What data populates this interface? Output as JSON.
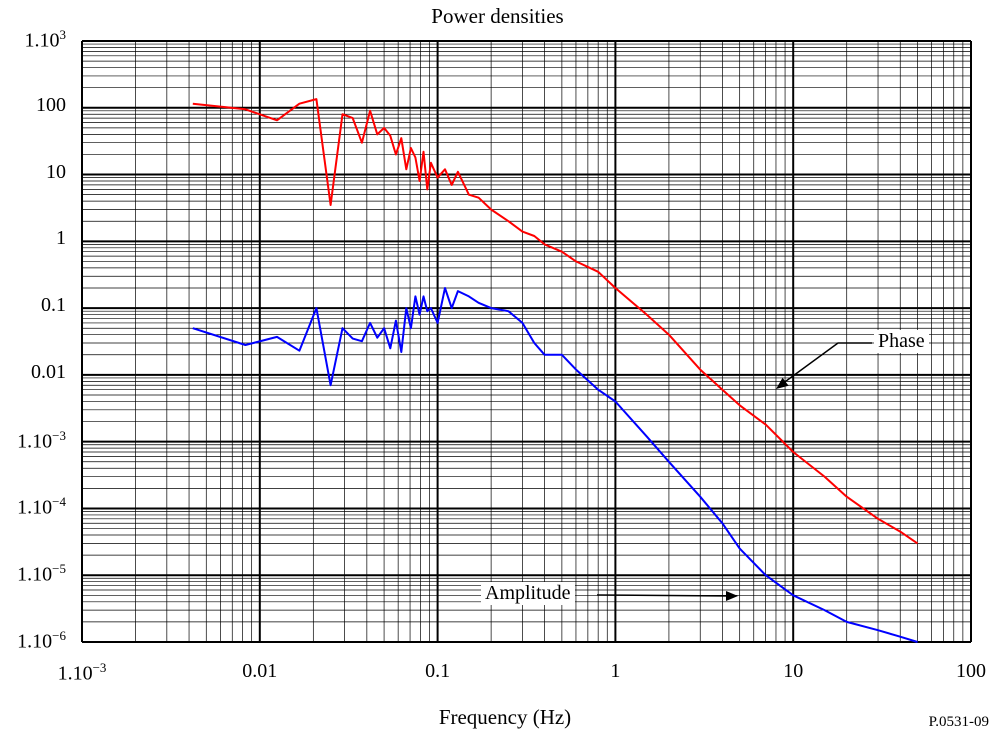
{
  "figure_id": "P.0531-09",
  "chart_data": {
    "type": "line",
    "title": "Power densities",
    "xlabel": "Frequency (Hz)",
    "ylabel": "",
    "xscale": "log",
    "yscale": "log",
    "xlim": [
      0.001,
      100
    ],
    "ylim": [
      1e-06,
      1000
    ],
    "grid": true,
    "x_ticks": [
      {
        "mant": "1.10",
        "exp": "−3"
      },
      {
        "mant": "0.01",
        "exp": ""
      },
      {
        "mant": "0.1",
        "exp": ""
      },
      {
        "mant": "1",
        "exp": ""
      },
      {
        "mant": "10",
        "exp": ""
      },
      {
        "mant": "100",
        "exp": ""
      }
    ],
    "y_ticks": [
      {
        "mant": "1.10",
        "exp": "3"
      },
      {
        "mant": "100",
        "exp": ""
      },
      {
        "mant": "10",
        "exp": ""
      },
      {
        "mant": "1",
        "exp": ""
      },
      {
        "mant": "0.1",
        "exp": ""
      },
      {
        "mant": "0.01",
        "exp": ""
      },
      {
        "mant": "1.10",
        "exp": "−3"
      },
      {
        "mant": "1.10",
        "exp": "−4"
      },
      {
        "mant": "1.10",
        "exp": "−5"
      },
      {
        "mant": "1.10",
        "exp": "−6"
      }
    ],
    "series": [
      {
        "name": "Phase",
        "color": "#ff0000",
        "x": [
          0.0042,
          0.0083,
          0.0125,
          0.0167,
          0.0208,
          0.025,
          0.0292,
          0.0333,
          0.0375,
          0.0417,
          0.0458,
          0.05,
          0.0542,
          0.0583,
          0.0625,
          0.0667,
          0.0708,
          0.075,
          0.0792,
          0.0833,
          0.0875,
          0.0917,
          0.1,
          0.11,
          0.12,
          0.13,
          0.15,
          0.17,
          0.2,
          0.25,
          0.3,
          0.35,
          0.4,
          0.5,
          0.6,
          0.8,
          1,
          1.5,
          2,
          3,
          4,
          5,
          7,
          10,
          15,
          20,
          30,
          40,
          50
        ],
        "values": [
          115,
          95,
          65,
          115,
          135,
          3.5,
          80,
          70,
          30,
          90,
          40,
          50,
          38,
          20,
          35,
          12,
          25,
          18,
          8,
          22,
          6,
          15,
          9,
          12,
          7,
          11,
          5,
          4.5,
          3,
          2,
          1.4,
          1.2,
          0.9,
          0.7,
          0.5,
          0.35,
          0.2,
          0.08,
          0.04,
          0.012,
          0.006,
          0.0035,
          0.0018,
          0.0007,
          0.0003,
          0.00015,
          7e-05,
          4.5e-05,
          3e-05
        ]
      },
      {
        "name": "Amplitude",
        "color": "#0000ff",
        "x": [
          0.0042,
          0.0083,
          0.0125,
          0.0167,
          0.0208,
          0.025,
          0.0292,
          0.0333,
          0.0375,
          0.0417,
          0.0458,
          0.05,
          0.0542,
          0.0583,
          0.0625,
          0.0667,
          0.0708,
          0.075,
          0.0792,
          0.0833,
          0.0875,
          0.0917,
          0.1,
          0.11,
          0.12,
          0.13,
          0.15,
          0.17,
          0.2,
          0.25,
          0.3,
          0.35,
          0.4,
          0.5,
          0.6,
          0.8,
          1,
          1.5,
          2,
          3,
          4,
          5,
          7,
          10,
          15,
          20,
          30,
          40,
          50
        ],
        "values": [
          0.05,
          0.028,
          0.037,
          0.023,
          0.1,
          0.007,
          0.05,
          0.035,
          0.032,
          0.06,
          0.036,
          0.05,
          0.025,
          0.065,
          0.022,
          0.1,
          0.05,
          0.15,
          0.08,
          0.15,
          0.09,
          0.1,
          0.06,
          0.2,
          0.1,
          0.18,
          0.15,
          0.12,
          0.1,
          0.09,
          0.06,
          0.03,
          0.02,
          0.02,
          0.012,
          0.006,
          0.004,
          0.0012,
          0.0005,
          0.00015,
          6e-05,
          2.5e-05,
          1e-05,
          5e-06,
          3e-06,
          2e-06,
          1.5e-06,
          1.2e-06,
          1e-06
        ]
      }
    ],
    "annotations": [
      {
        "text": "Phase",
        "target": "Phase"
      },
      {
        "text": "Amplitude",
        "target": "Amplitude"
      }
    ]
  }
}
